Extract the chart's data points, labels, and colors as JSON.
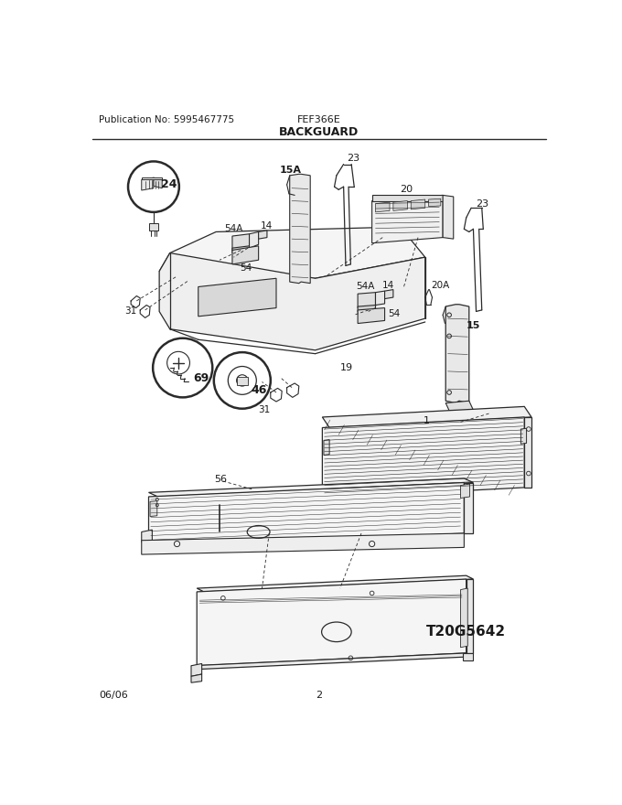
{
  "title": "FEF366E",
  "section": "BACKGUARD",
  "pub_no": "Publication No: 5995467775",
  "date": "06/06",
  "page": "2",
  "watermark": "T20G5642",
  "bg_color": "#ffffff",
  "line_color": "#2a2a2a",
  "text_color": "#1a1a1a",
  "figsize": [
    6.8,
    8.8
  ],
  "dpi": 100
}
